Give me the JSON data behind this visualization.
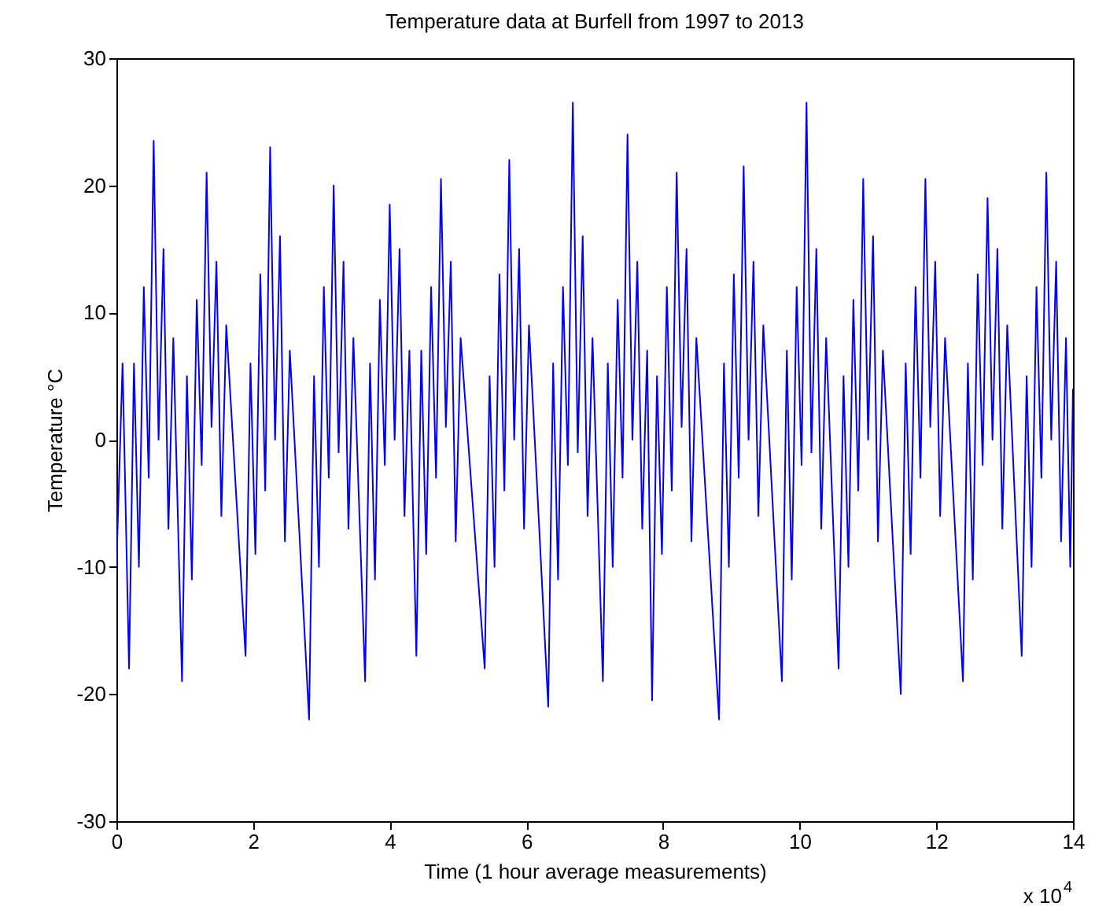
{
  "chart_data": {
    "type": "line",
    "title": "Temperature data at Burfell from 1997 to 2013",
    "xlabel": "Time (1 hour average measurements)",
    "ylabel": "Temperature °C",
    "annotations": [
      "x 10$^{4}$"
    ],
    "xlim": [
      0,
      14
    ],
    "ylim": [
      -30,
      30
    ],
    "xticks": [
      0,
      2,
      4,
      6,
      8,
      10,
      12,
      14
    ],
    "yticks": [
      -30,
      -20,
      -10,
      0,
      10,
      20,
      30
    ],
    "grid": false,
    "marker": "none",
    "line_style": "solid",
    "x": [
      0,
      0.09,
      0.185,
      0.257,
      0.329,
      0.401,
      0.473,
      0.545,
      0.617,
      0.689,
      0.761,
      0.833,
      0.96,
      1.032,
      1.104,
      1.176,
      1.248,
      1.32,
      1.392,
      1.464,
      1.536,
      1.608,
      1.89,
      1.962,
      2.034,
      2.106,
      2.178,
      2.25,
      2.322,
      2.394,
      2.466,
      2.538,
      2.82,
      2.892,
      2.964,
      3.036,
      3.108,
      3.18,
      3.252,
      3.324,
      3.396,
      3.468,
      3.64,
      3.712,
      3.784,
      3.856,
      3.928,
      4,
      4.072,
      4.144,
      4.216,
      4.288,
      4.39,
      4.462,
      4.534,
      4.606,
      4.678,
      4.75,
      4.822,
      4.894,
      4.966,
      5.038,
      5.39,
      5.462,
      5.534,
      5.606,
      5.678,
      5.75,
      5.822,
      5.894,
      5.966,
      6.038,
      6.32,
      6.392,
      6.464,
      6.536,
      6.608,
      6.68,
      6.752,
      6.824,
      6.896,
      6.968,
      7.12,
      7.192,
      7.264,
      7.336,
      7.408,
      7.48,
      7.552,
      7.624,
      7.696,
      7.768,
      7.84,
      7.912,
      7.984,
      8.056,
      8.128,
      8.2,
      8.272,
      8.344,
      8.416,
      8.488,
      8.82,
      8.892,
      8.964,
      9.036,
      9.108,
      9.18,
      9.252,
      9.324,
      9.396,
      9.468,
      9.74,
      9.812,
      9.884,
      9.956,
      10.028,
      10.1,
      10.172,
      10.244,
      10.316,
      10.388,
      10.57,
      10.642,
      10.714,
      10.786,
      10.858,
      10.93,
      11.002,
      11.074,
      11.146,
      11.218,
      11.48,
      11.552,
      11.624,
      11.696,
      11.768,
      11.84,
      11.912,
      11.984,
      12.056,
      12.128,
      12.39,
      12.462,
      12.534,
      12.606,
      12.678,
      12.75,
      12.822,
      12.894,
      12.966,
      13.038,
      13.25,
      13.322,
      13.394,
      13.466,
      13.538,
      13.61,
      13.682,
      13.754,
      13.826,
      13.898,
      13.96,
      14
    ],
    "series": [
      {
        "color": "#0000ff",
        "values": [
          -10,
          6,
          -18,
          6,
          -10,
          12,
          -3,
          23.5,
          0,
          15,
          -7,
          8,
          -19,
          5,
          -11,
          11,
          -2,
          21,
          1,
          14,
          -6,
          9,
          -17,
          6,
          -9,
          13,
          -4,
          23,
          0,
          16,
          -8,
          7,
          -22,
          5,
          -10,
          12,
          -3,
          20,
          -1,
          14,
          -7,
          8,
          -19,
          6,
          -11,
          11,
          -2,
          18.5,
          0,
          15,
          -6,
          7,
          -17,
          7,
          -9,
          12,
          -3,
          20.5,
          1,
          14,
          -8,
          8,
          -18,
          5,
          -10,
          13,
          -4,
          22,
          0,
          15,
          -7,
          9,
          -21,
          6,
          -11,
          12,
          -2,
          26.5,
          -1,
          16,
          -6,
          8,
          -19,
          6,
          -10,
          11,
          -3,
          24,
          0,
          14,
          -7,
          7,
          -20.5,
          5,
          -9,
          12,
          -4,
          21,
          1,
          15,
          -8,
          8,
          -22,
          6,
          -10,
          13,
          -3,
          21.5,
          0,
          14,
          -6,
          9,
          -19,
          7,
          -11,
          12,
          -2,
          26.5,
          -1,
          15,
          -7,
          8,
          -18,
          5,
          -10,
          11,
          -4,
          20.5,
          0,
          16,
          -8,
          7,
          -20,
          6,
          -9,
          12,
          -3,
          20.5,
          1,
          14,
          -6,
          8,
          -19,
          6,
          -11,
          13,
          -2,
          19,
          0,
          15,
          -7,
          9,
          -17,
          5,
          -10,
          12,
          -3,
          21,
          0,
          14,
          -8,
          8,
          -10,
          4
        ]
      }
    ]
  }
}
